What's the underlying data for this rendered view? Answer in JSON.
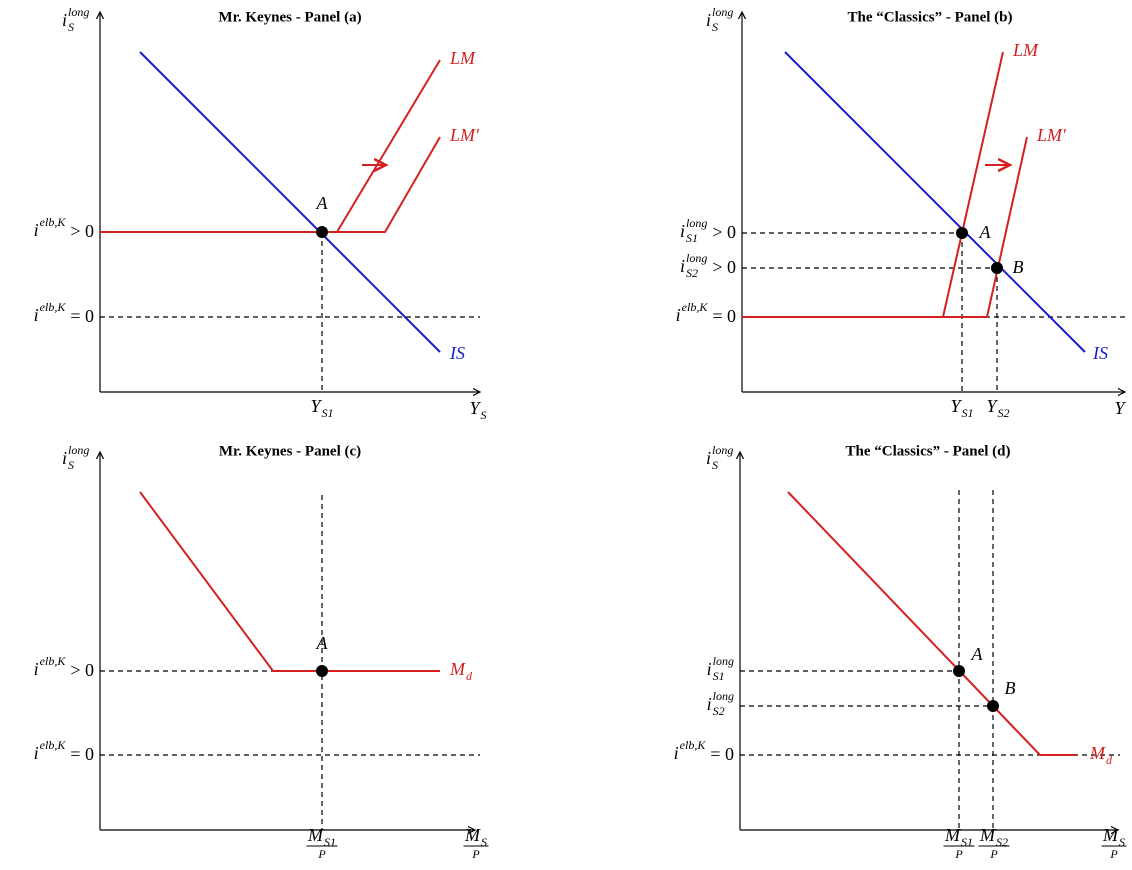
{
  "panels": [
    {
      "title": "Mr. Keynes - Panel (a)",
      "y_axis_label": {
        "base": "i",
        "sup": "long",
        "sub": "S"
      },
      "x_axis_label": {
        "base": "Y",
        "sub": "S"
      },
      "y_labels": [
        {
          "base": "i",
          "sup": "elb,K",
          "rest": "> 0"
        },
        {
          "base": "i",
          "sup": "elb,K",
          "rest": "= 0"
        }
      ],
      "x_labels": [
        {
          "base": "Y",
          "sub": "S1"
        }
      ],
      "curve_labels": [
        {
          "base": "LM"
        },
        {
          "base": "LM′"
        },
        {
          "base": "IS"
        }
      ],
      "point_labels": [
        "A"
      ]
    },
    {
      "title": "The “Classics” - Panel (b)",
      "y_axis_label": {
        "base": "i",
        "sup": "long",
        "sub": "S"
      },
      "x_axis_label": {
        "base": "Y"
      },
      "y_labels": [
        {
          "base": "i",
          "sup": "long",
          "sub": "S1",
          "rest": "> 0"
        },
        {
          "base": "i",
          "sup": "long",
          "sub": "S2",
          "rest": "> 0"
        },
        {
          "base": "i",
          "sup": "elb,K",
          "rest": "= 0"
        }
      ],
      "x_labels": [
        {
          "base": "Y",
          "sub": "S1"
        },
        {
          "base": "Y",
          "sub": "S2"
        }
      ],
      "curve_labels": [
        {
          "base": "LM"
        },
        {
          "base": "LM′"
        },
        {
          "base": "IS"
        }
      ],
      "point_labels": [
        "A",
        "B"
      ]
    },
    {
      "title": "Mr. Keynes - Panel (c)",
      "y_axis_label": {
        "base": "i",
        "sup": "long",
        "sub": "S"
      },
      "x_axis_label": {
        "num": {
          "base": "M",
          "sub": "S"
        },
        "den": "P"
      },
      "y_labels": [
        {
          "base": "i",
          "sup": "elb,K",
          "rest": "> 0"
        },
        {
          "base": "i",
          "sup": "elb,K",
          "rest": "= 0"
        }
      ],
      "x_labels": [
        {
          "num": {
            "base": "M",
            "sub": "S1"
          },
          "den": "P"
        }
      ],
      "curve_labels": [
        {
          "base": "M",
          "sub": "d"
        }
      ],
      "point_labels": [
        "A"
      ]
    },
    {
      "title": "The “Classics” - Panel (d)",
      "y_axis_label": {
        "base": "i",
        "sup": "long",
        "sub": "S"
      },
      "x_axis_label": {
        "num": {
          "base": "M",
          "sub": "S"
        },
        "den": "P"
      },
      "y_labels": [
        {
          "base": "i",
          "sup": "long",
          "sub": "S1"
        },
        {
          "base": "i",
          "sup": "long",
          "sub": "S2"
        },
        {
          "base": "i",
          "sup": "elb,K",
          "rest": "= 0"
        }
      ],
      "x_labels": [
        {
          "num": {
            "base": "M",
            "sub": "S1"
          },
          "den": "P"
        },
        {
          "num": {
            "base": "M",
            "sub": "S2"
          },
          "den": "P"
        }
      ],
      "curve_labels": [
        {
          "base": "M",
          "sub": "d"
        }
      ],
      "point_labels": [
        "A",
        "B"
      ]
    }
  ]
}
